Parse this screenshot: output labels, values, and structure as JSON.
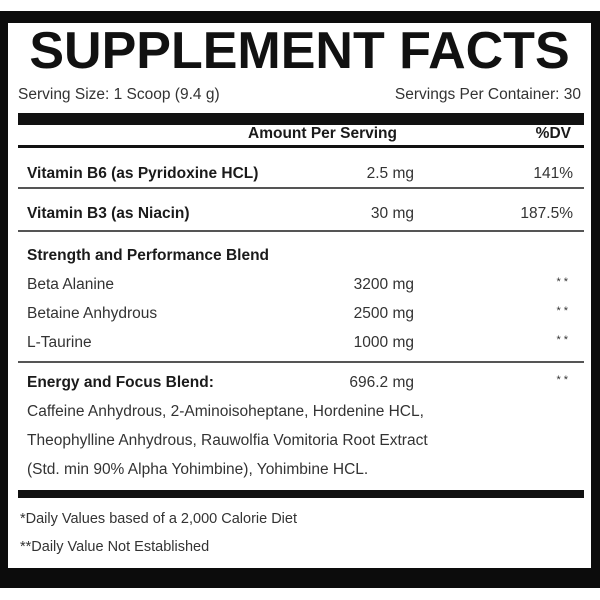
{
  "title": "SUPPLEMENT FACTS",
  "serving_size": "Serving Size: 1 Scoop (9.4 g)",
  "servings_per_container": "Servings Per Container: 30",
  "header": {
    "amount": "Amount Per Serving",
    "dv": "%DV"
  },
  "vitamins": [
    {
      "name": "Vitamin B6 (as Pyridoxine HCL)",
      "amount": "2.5 mg",
      "dv": "141%"
    },
    {
      "name": "Vitamin B3 (as Niacin)",
      "amount": "30 mg",
      "dv": "187.5%"
    }
  ],
  "strength_blend": {
    "title": "Strength and Performance Blend",
    "items": [
      {
        "name": "Beta Alanine",
        "amount": "3200 mg",
        "dv": "**"
      },
      {
        "name": "Betaine Anhydrous",
        "amount": "2500 mg",
        "dv": "**"
      },
      {
        "name": "L-Taurine",
        "amount": "1000 mg",
        "dv": "**"
      }
    ]
  },
  "energy_blend": {
    "title": "Energy and Focus Blend:",
    "amount": "696.2 mg",
    "dv": "**",
    "lines": [
      "Caffeine Anhydrous, 2-Aminoisoheptane, Hordenine HCL,",
      "Theophylline Anhydrous, Rauwolfia Vomitoria Root Extract",
      "(Std. min 90% Alpha Yohimbine), Yohimbine HCL."
    ]
  },
  "footnotes": [
    "*Daily Values based of a 2,000 Calorie Diet",
    "**Daily Value Not Established"
  ]
}
